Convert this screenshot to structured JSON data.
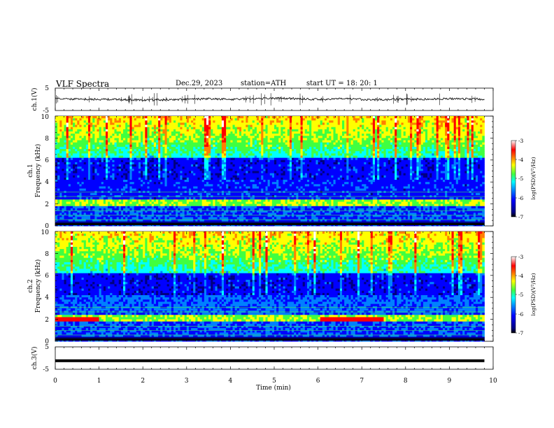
{
  "header": {
    "title": "VLF  Spectra",
    "date": "Dec.29, 2023",
    "station": "station=ATH",
    "start_label": "start  UT  =",
    "start_time": "18: 20: 1"
  },
  "colors": {
    "waveform": "#111111",
    "spectrogram_scale": [
      "#000080",
      "#0000ff",
      "#0080ff",
      "#00ffff",
      "#40ff40",
      "#ffff00",
      "#ff8000",
      "#ff0000",
      "#ffffff"
    ]
  },
  "chart_data": [
    {
      "type": "line",
      "name": "ch1-waveform",
      "ylabel": "ch.1(V)",
      "ylim": [
        -5,
        5
      ],
      "yticks": [
        "5",
        "-5"
      ],
      "xlim": [
        0,
        10
      ],
      "x": [
        0,
        0.5,
        1,
        1.5,
        2,
        2.5,
        3,
        3.5,
        4,
        4.5,
        5,
        5.5,
        6,
        6.5,
        7,
        7.5,
        8,
        8.5,
        9,
        9.5,
        9.8
      ],
      "y": [
        0.3,
        0.1,
        0.0,
        -0.1,
        -0.3,
        -0.2,
        0.0,
        0.2,
        0.0,
        0.3,
        0.5,
        0.3,
        0.0,
        0.2,
        0.0,
        -0.2,
        0.1,
        0.0,
        0.3,
        0.2,
        0.0
      ]
    },
    {
      "type": "heatmap",
      "name": "ch1-spectrogram",
      "ylabel": "ch.1\nFrequency  (kHz)",
      "ylim": [
        0,
        10
      ],
      "yticks": [
        "0",
        "2",
        "4",
        "6",
        "8",
        "10"
      ],
      "xlim": [
        0,
        10
      ],
      "colorbar_label": "log(PSD)(V²/Hz)",
      "colorbar_range": [
        -7,
        -3
      ],
      "colorbar_ticks": [
        "-3",
        "-4",
        "-5",
        "-6",
        "-7"
      ]
    },
    {
      "type": "heatmap",
      "name": "ch2-spectrogram",
      "ylabel": "ch.2\nFrequency  (kHz)",
      "ylim": [
        0,
        10
      ],
      "yticks": [
        "0",
        "2",
        "4",
        "6",
        "8",
        "10"
      ],
      "xlim": [
        0,
        10
      ],
      "colorbar_label": "log(PSD)(V²/Hz)",
      "colorbar_range": [
        -7,
        -3
      ],
      "colorbar_ticks": [
        "-3",
        "-4",
        "-5",
        "-6",
        "-7"
      ]
    },
    {
      "type": "line",
      "name": "ch3-waveform",
      "ylabel": "ch.3(V)",
      "ylim": [
        -5,
        5
      ],
      "yticks": [
        "5",
        "-5"
      ],
      "xlim": [
        0,
        10
      ],
      "x": [
        0,
        9.8
      ],
      "y": [
        -1.2,
        -1.2
      ]
    }
  ],
  "xaxis": {
    "label": "Time  (min)",
    "ticks": [
      "0",
      "1",
      "2",
      "3",
      "4",
      "5",
      "6",
      "7",
      "8",
      "9",
      "10"
    ]
  },
  "axis_labels": {
    "ch1_wave": "ch.1(V)",
    "ch1_spec_a": "ch.1",
    "ch1_spec_b": "Frequency  (kHz)",
    "ch2_spec_a": "ch.2",
    "ch2_spec_b": "Frequency  (kHz)",
    "ch3_wave": "ch.3(V)",
    "colorbar": "log(PSD)(V²/Hz)"
  }
}
